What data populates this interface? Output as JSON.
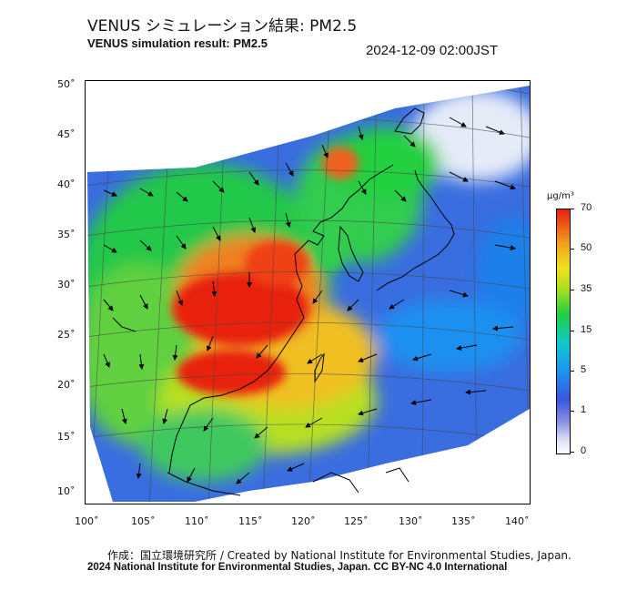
{
  "title": {
    "jp": "VENUS シミュレーション結果: PM2.5",
    "en": "VENUS simulation result: PM2.5",
    "timestamp": "2024-12-09 02:00JST"
  },
  "map": {
    "lat_ticks": [
      "50˚",
      "45˚",
      "40˚",
      "35˚",
      "30˚",
      "25˚",
      "20˚",
      "15˚",
      "10˚"
    ],
    "lon_ticks": [
      "100˚",
      "105˚",
      "110˚",
      "115˚",
      "120˚",
      "125˚",
      "130˚",
      "135˚",
      "140˚"
    ],
    "lat_values": [
      50,
      45,
      40,
      35,
      30,
      25,
      20,
      15,
      10
    ],
    "lon_values": [
      100,
      105,
      110,
      115,
      120,
      125,
      130,
      135,
      140
    ]
  },
  "colorbar": {
    "unit": "μg/m³",
    "ticks": [
      "70",
      "50",
      "35",
      "15",
      "5",
      "1",
      "0"
    ],
    "colors": {
      "high": "#e82010",
      "upper": "#f0a020",
      "mid": "#20d040",
      "low": "#1e90f0",
      "lowest": "#3a56dd",
      "zero": "#ffffff"
    }
  },
  "credits": {
    "line1": "作成：国立環境研究所 / Created by National Institute for Environmental Studies, Japan.",
    "line2": "2024 National Institute for Environmental Studies, Japan. CC BY-NC 4.0 International"
  }
}
